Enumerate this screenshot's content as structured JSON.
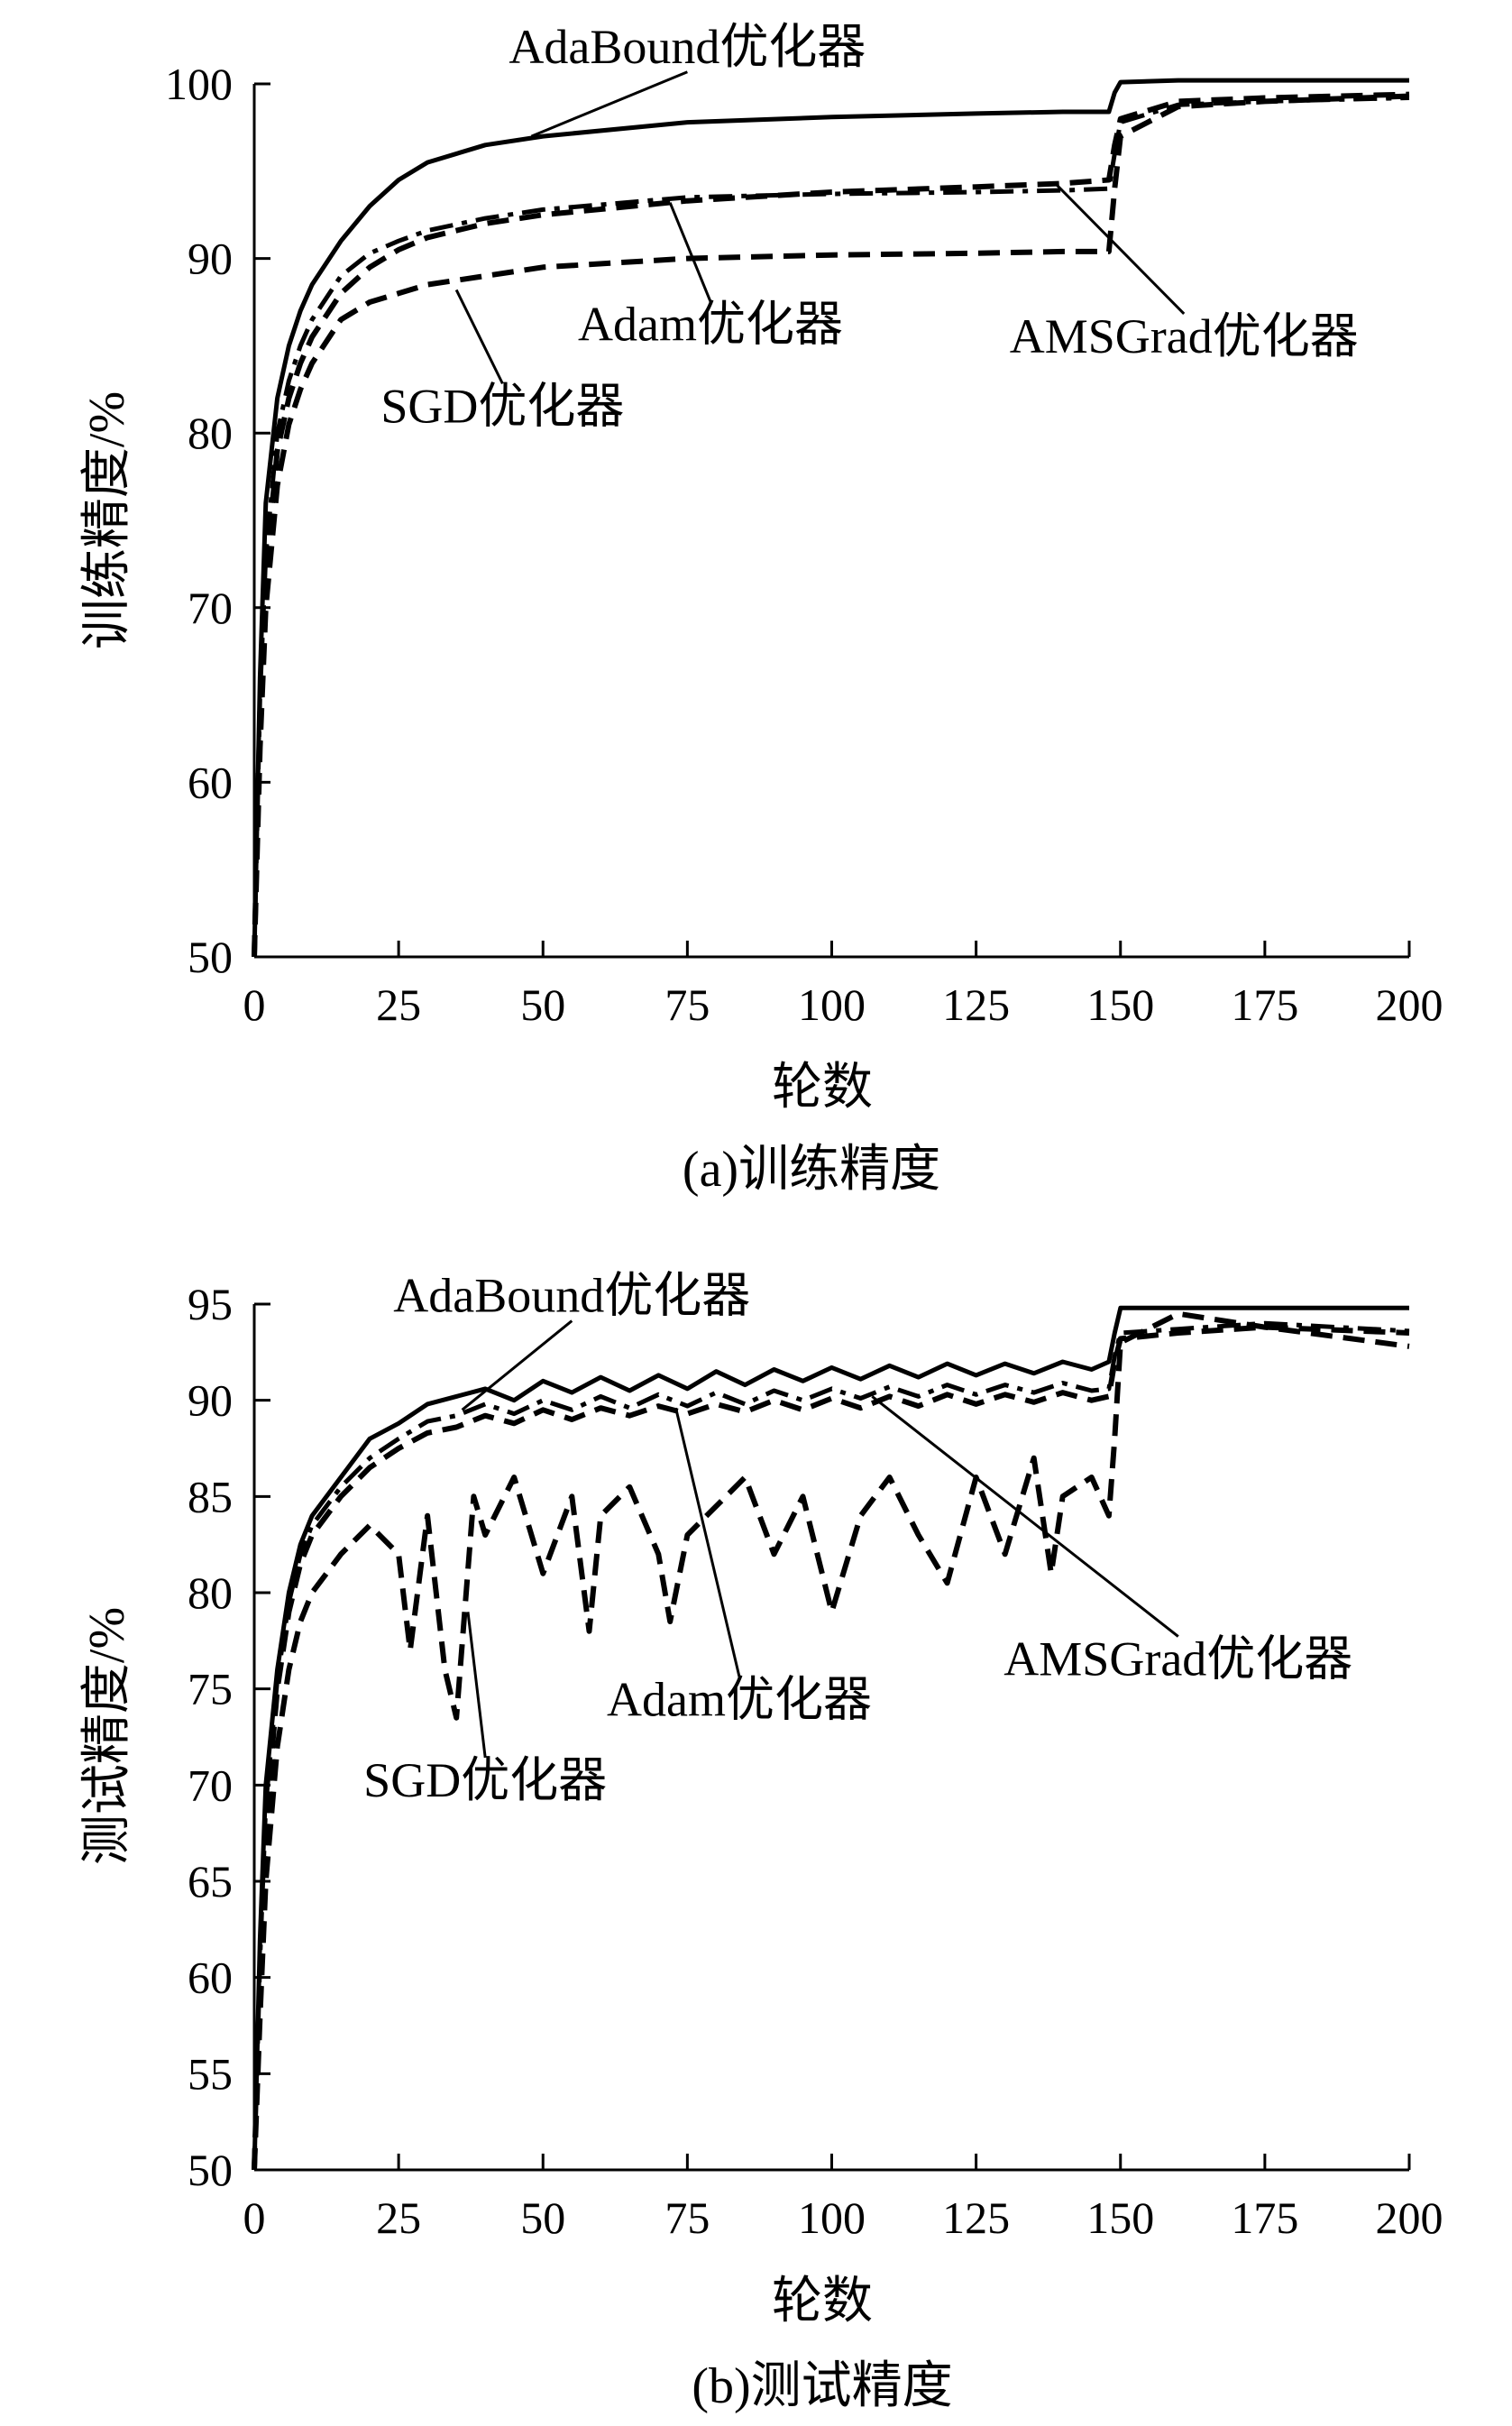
{
  "chart_data": [
    {
      "type": "line",
      "caption": "(a)训练精度",
      "xlabel": "轮数",
      "ylabel": "训练精度/%",
      "xlim": [
        0,
        200
      ],
      "ylim": [
        50,
        100
      ],
      "xticks": [
        0,
        25,
        50,
        75,
        100,
        125,
        150,
        175,
        200
      ],
      "yticks": [
        50,
        60,
        70,
        80,
        90,
        100
      ],
      "grid": false,
      "legend": "none",
      "series": [
        {
          "name": "AdaBound优化器",
          "style": "solid",
          "x": [
            0,
            1,
            2,
            4,
            6,
            8,
            10,
            15,
            20,
            25,
            30,
            40,
            50,
            75,
            100,
            125,
            140,
            148,
            149,
            150,
            160,
            175,
            200
          ],
          "y": [
            50,
            66,
            76,
            82,
            85,
            87,
            88.5,
            91,
            93,
            94.5,
            95.5,
            96.5,
            97,
            97.8,
            98.1,
            98.3,
            98.4,
            98.4,
            99.5,
            100.1,
            100.2,
            100.2,
            100.2
          ]
        },
        {
          "name": "Adam优化器",
          "style": "dashed",
          "x": [
            0,
            1,
            2,
            4,
            6,
            8,
            10,
            15,
            20,
            25,
            30,
            40,
            50,
            75,
            100,
            125,
            140,
            148,
            149,
            150,
            160,
            175,
            200
          ],
          "y": [
            50,
            64,
            72,
            79,
            82,
            84,
            85.5,
            88,
            89.5,
            90.5,
            91.2,
            92,
            92.5,
            93.3,
            93.8,
            94.1,
            94.3,
            94.5,
            96.5,
            98,
            99,
            99.2,
            99.4
          ]
        },
        {
          "name": "SGD优化器",
          "style": "dashed",
          "x": [
            0,
            1,
            2,
            4,
            6,
            8,
            10,
            15,
            20,
            25,
            30,
            40,
            50,
            75,
            100,
            125,
            140,
            148,
            149,
            150,
            160,
            175,
            200
          ],
          "y": [
            50,
            62,
            70,
            77,
            80.5,
            82.5,
            84,
            86.5,
            87.5,
            88,
            88.5,
            89,
            89.5,
            90,
            90.2,
            90.3,
            90.4,
            90.4,
            94,
            97,
            98.7,
            99,
            99.3
          ]
        },
        {
          "name": "AMSGrad优化器",
          "style": "dash-dot",
          "x": [
            0,
            1,
            2,
            4,
            6,
            8,
            10,
            15,
            20,
            25,
            30,
            40,
            50,
            75,
            100,
            125,
            140,
            148,
            149,
            150,
            160,
            175,
            200
          ],
          "y": [
            50,
            65,
            73,
            80,
            83,
            85,
            86.5,
            89,
            90.3,
            91,
            91.6,
            92.3,
            92.8,
            93.5,
            93.7,
            93.8,
            93.9,
            94,
            96,
            97.8,
            98.8,
            99,
            99.2
          ]
        }
      ],
      "annotations": [
        {
          "text": "AdaBound优化器",
          "x": 48,
          "y": 97,
          "tx": 75,
          "ty": 101.2
        },
        {
          "text": "Adam优化器",
          "x": 72,
          "y": 93.2,
          "tx": 79,
          "ty": 85.3
        },
        {
          "text": "SGD优化器",
          "x": 35,
          "y": 88.2,
          "tx": 43,
          "ty": 80.6
        },
        {
          "text": "AMSGrad优化器",
          "x": 139,
          "y": 94.2,
          "tx": 161,
          "ty": 84.6
        }
      ]
    },
    {
      "type": "line",
      "caption": "(b)测试精度",
      "xlabel": "轮数",
      "ylabel": "测试精度/%",
      "xlim": [
        0,
        200
      ],
      "ylim": [
        50,
        95
      ],
      "xticks": [
        0,
        25,
        50,
        75,
        100,
        125,
        150,
        175,
        200
      ],
      "yticks": [
        50,
        55,
        60,
        65,
        70,
        75,
        80,
        85,
        90,
        95
      ],
      "grid": false,
      "legend": "none",
      "series": [
        {
          "name": "AdaBound优化器",
          "style": "solid",
          "x": [
            0,
            1,
            2,
            4,
            6,
            8,
            10,
            15,
            20,
            25,
            30,
            35,
            40,
            45,
            50,
            55,
            60,
            65,
            70,
            75,
            80,
            85,
            90,
            95,
            100,
            105,
            110,
            115,
            120,
            125,
            130,
            135,
            140,
            145,
            148,
            149,
            150,
            160,
            175,
            200
          ],
          "y": [
            50,
            62,
            70,
            76,
            80,
            82.5,
            84,
            86,
            88,
            88.8,
            89.8,
            90.2,
            90.6,
            90,
            91,
            90.4,
            91.2,
            90.5,
            91.3,
            90.6,
            91.5,
            90.8,
            91.6,
            91,
            91.7,
            91.1,
            91.8,
            91.2,
            91.9,
            91.3,
            91.9,
            91.4,
            92,
            91.6,
            92,
            93.5,
            94.8,
            94.8,
            94.8,
            94.8
          ]
        },
        {
          "name": "Adam优化器",
          "style": "dashed",
          "x": [
            0,
            1,
            2,
            4,
            6,
            8,
            10,
            15,
            20,
            25,
            30,
            35,
            40,
            45,
            50,
            55,
            60,
            65,
            70,
            75,
            80,
            85,
            90,
            95,
            100,
            105,
            110,
            115,
            120,
            125,
            130,
            135,
            140,
            145,
            148,
            149,
            150,
            160,
            175,
            200
          ],
          "y": [
            50,
            60,
            68,
            75,
            79,
            81.5,
            83,
            85,
            86.5,
            87.5,
            88.3,
            88.6,
            89.2,
            88.8,
            89.5,
            89,
            89.6,
            89.2,
            89.7,
            89.3,
            89.8,
            89.4,
            90,
            89.5,
            90.1,
            89.6,
            90.2,
            89.7,
            90.3,
            89.8,
            90.3,
            89.9,
            90.4,
            90,
            90.2,
            92,
            93.2,
            93.5,
            93.8,
            93.5
          ]
        },
        {
          "name": "SGD优化器",
          "style": "dashed",
          "x": [
            0,
            1,
            2,
            4,
            6,
            8,
            10,
            15,
            20,
            25,
            27,
            30,
            33,
            35,
            38,
            40,
            45,
            50,
            55,
            58,
            60,
            65,
            70,
            72,
            75,
            80,
            85,
            90,
            95,
            100,
            105,
            110,
            115,
            120,
            125,
            130,
            135,
            138,
            140,
            145,
            148,
            149,
            150,
            160,
            175,
            200
          ],
          "y": [
            50,
            58,
            65,
            72,
            76,
            78.5,
            80,
            82,
            83.5,
            82,
            77,
            84,
            76,
            73.5,
            85,
            83,
            86,
            81,
            85,
            78,
            84,
            85.5,
            82,
            78.5,
            83,
            84.5,
            86,
            82,
            85,
            79,
            84,
            86,
            83,
            80.5,
            86,
            82,
            87,
            81,
            85,
            86,
            84,
            88,
            93,
            94.5,
            93.8,
            92.8
          ]
        },
        {
          "name": "AMSGrad优化器",
          "style": "dash-dot",
          "x": [
            0,
            1,
            2,
            4,
            6,
            8,
            10,
            15,
            20,
            25,
            30,
            35,
            40,
            45,
            50,
            55,
            60,
            65,
            70,
            75,
            80,
            85,
            90,
            95,
            100,
            105,
            110,
            115,
            120,
            125,
            130,
            135,
            140,
            145,
            148,
            149,
            150,
            160,
            175,
            200
          ],
          "y": [
            50,
            61,
            69,
            75.5,
            79.5,
            82,
            83.5,
            85.5,
            87,
            88,
            88.9,
            89.2,
            89.8,
            89.3,
            90,
            89.5,
            90.2,
            89.6,
            90.3,
            89.7,
            90.4,
            89.8,
            90.5,
            90,
            90.6,
            90.1,
            90.7,
            90.2,
            90.8,
            90.3,
            90.8,
            90.4,
            90.9,
            90.5,
            90.6,
            92.3,
            93.5,
            93.7,
            94,
            93.6
          ]
        }
      ],
      "annotations": [
        {
          "text": "AdaBound优化器",
          "x": 36,
          "y": 89.5,
          "tx": 55,
          "ty": 94.6
        },
        {
          "text": "Adam优化器",
          "x": 73,
          "y": 89.6,
          "tx": 84,
          "ty": 73.6
        },
        {
          "text": "SGD优化器",
          "x": 37,
          "y": 79,
          "tx": 40,
          "ty": 69.4
        },
        {
          "text": "AMSGrad优化器",
          "x": 107,
          "y": 90.2,
          "tx": 160,
          "ty": 75.7
        }
      ]
    }
  ]
}
